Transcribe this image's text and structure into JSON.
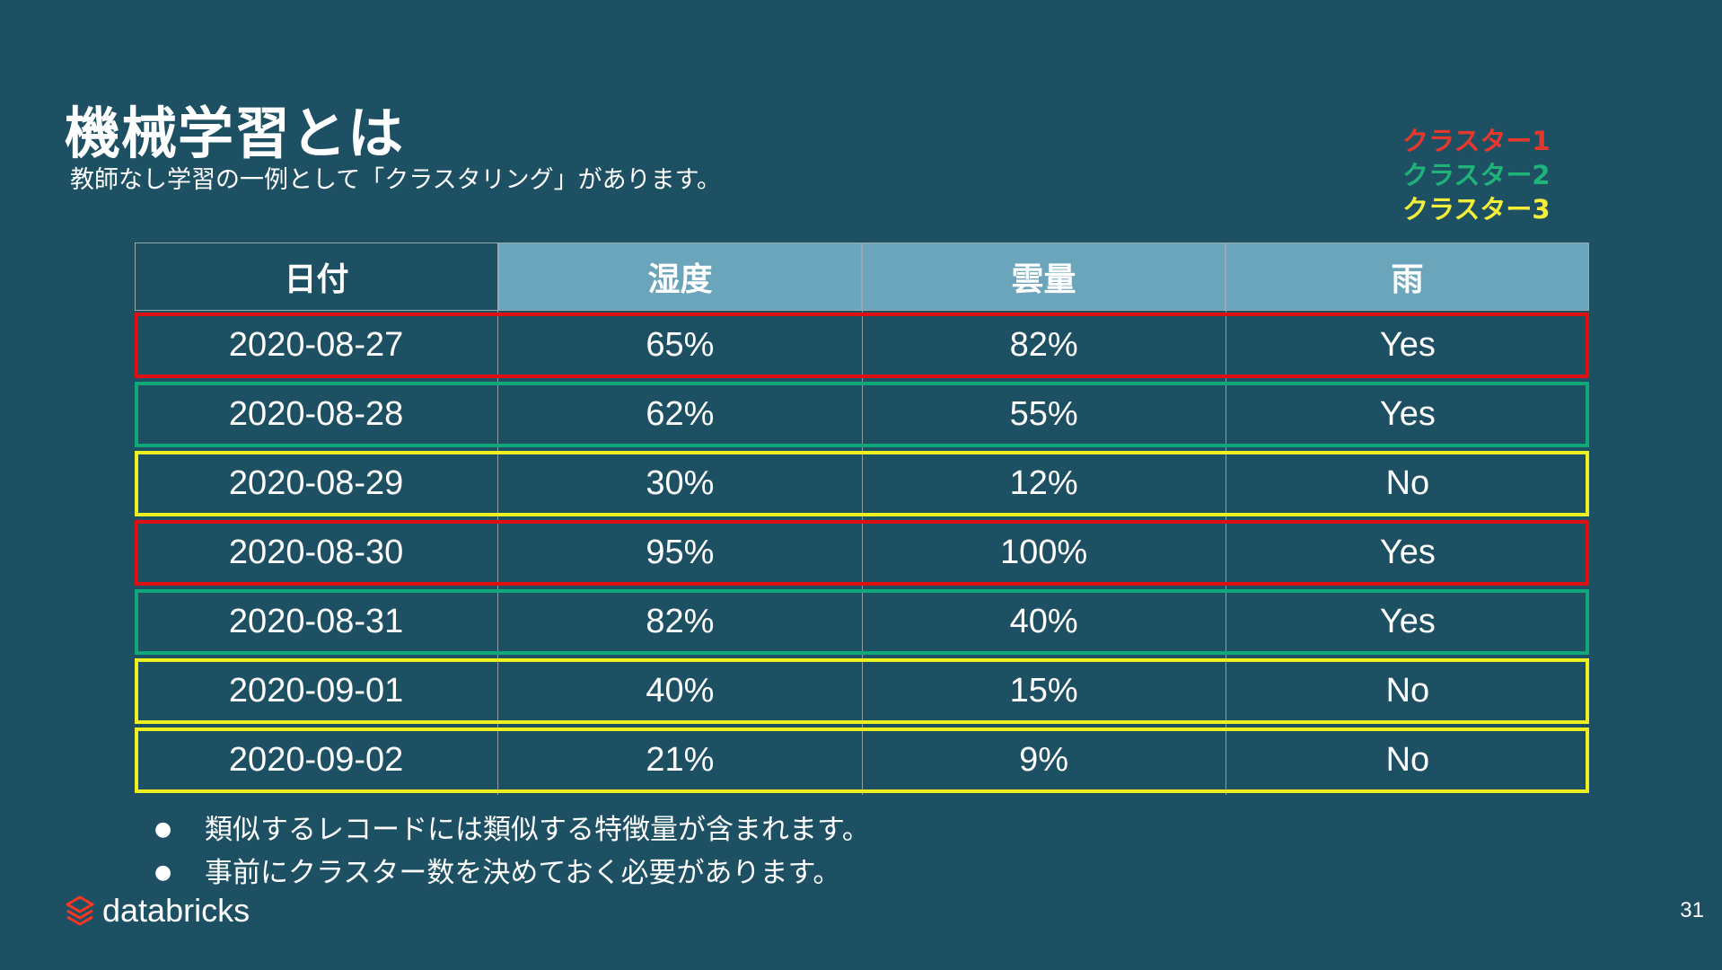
{
  "slide": {
    "title": "機械学習とは",
    "subtitle": "教師なし学習の一例として「クラスタリング」があります。",
    "page_number": "31"
  },
  "legend": [
    {
      "label": "クラスター1",
      "color": "#e8382e"
    },
    {
      "label": "クラスター2",
      "color": "#1fb37a"
    },
    {
      "label": "クラスター3",
      "color": "#f2ee3a"
    }
  ],
  "table": {
    "headers": [
      "日付",
      "湿度",
      "雲量",
      "雨"
    ],
    "rows": [
      {
        "cells": [
          "2020-08-27",
          "65%",
          "82%",
          "Yes"
        ],
        "cluster_color": "#e01010"
      },
      {
        "cells": [
          "2020-08-28",
          "62%",
          "55%",
          "Yes"
        ],
        "cluster_color": "#10a878"
      },
      {
        "cells": [
          "2020-08-29",
          "30%",
          "12%",
          "No"
        ],
        "cluster_color": "#f0f020"
      },
      {
        "cells": [
          "2020-08-30",
          "95%",
          "100%",
          "Yes"
        ],
        "cluster_color": "#e01010"
      },
      {
        "cells": [
          "2020-08-31",
          "82%",
          "40%",
          "Yes"
        ],
        "cluster_color": "#10a878"
      },
      {
        "cells": [
          "2020-09-01",
          "40%",
          "15%",
          "No"
        ],
        "cluster_color": "#f0f020"
      },
      {
        "cells": [
          "2020-09-02",
          "21%",
          "9%",
          "No"
        ],
        "cluster_color": "#f0f020"
      }
    ]
  },
  "bullets": [
    "類似するレコードには類似する特徴量が含まれます。",
    "事前にクラスター数を決めておく必要があります。"
  ],
  "logo": {
    "brand": "databricks",
    "icon": "databricks-logo-icon"
  }
}
